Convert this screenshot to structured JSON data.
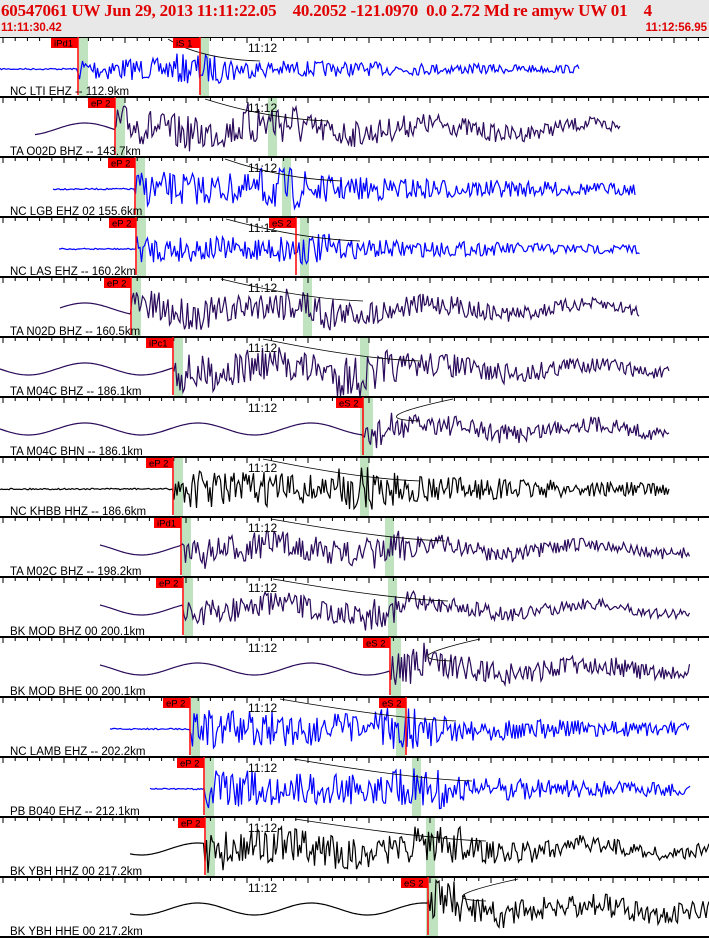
{
  "header": {
    "title": "60547061 UW Jun 29, 2013 11:11:22.05    40.2052 -121.0970  0.0 2.72 Md re amyw UW 01    4",
    "start_time": "11:11:30.42",
    "end_time": "11:12:56.95"
  },
  "minute_label": "11:12",
  "traces": [
    {
      "label": "NC LTI EHZ -- 112.9km",
      "color": "#0000ff",
      "picks": [
        "iPd1",
        "iS 1"
      ]
    },
    {
      "label": "TA O02D BHZ -- 143.7km",
      "color": "#2a0a5a",
      "picks": [
        "eP 2"
      ]
    },
    {
      "label": "NC LGB EHZ 02 155.6km",
      "color": "#0000ff",
      "picks": [
        "eP 2"
      ]
    },
    {
      "label": "NC LAS EHZ -- 160.2km",
      "color": "#0000ff",
      "picks": [
        "eP 2",
        "eS 2"
      ]
    },
    {
      "label": "TA N02D BHZ -- 160.5km",
      "color": "#2a0a5a",
      "picks": [
        "eP 2"
      ]
    },
    {
      "label": "TA M04C BHZ -- 186.1km",
      "color": "#2a0a5a",
      "picks": [
        "iPc1"
      ]
    },
    {
      "label": "TA M04C BHN -- 186.1km",
      "color": "#2a0a5a",
      "picks": [
        "eS 2"
      ]
    },
    {
      "label": "NC KHBB HHZ -- 186.6km",
      "color": "#000000",
      "picks": [
        "eP 2"
      ]
    },
    {
      "label": "TA M02C BHZ -- 198.2km",
      "color": "#2a0a5a",
      "picks": [
        "iPd1"
      ]
    },
    {
      "label": "BK MOD BHZ 00 200.1km",
      "color": "#2a0a5a",
      "picks": [
        "eP 2"
      ]
    },
    {
      "label": "BK MOD BHE 00 200.1km",
      "color": "#2a0a5a",
      "picks": [
        "eS 2"
      ]
    },
    {
      "label": "NC LAMB EHZ -- 202.2km",
      "color": "#0000ff",
      "picks": [
        "eP 2",
        "eS 2"
      ]
    },
    {
      "label": "PB B040 EHZ -- 212.1km",
      "color": "#0000ff",
      "picks": [
        "eP 2"
      ]
    },
    {
      "label": "BK YBH HHZ 00 217.2km",
      "color": "#000000",
      "picks": [
        "eP 2"
      ]
    },
    {
      "label": "BK YBH HHE 00 217.2km",
      "color": "#000000",
      "picks": [
        "eS 2"
      ]
    }
  ]
}
